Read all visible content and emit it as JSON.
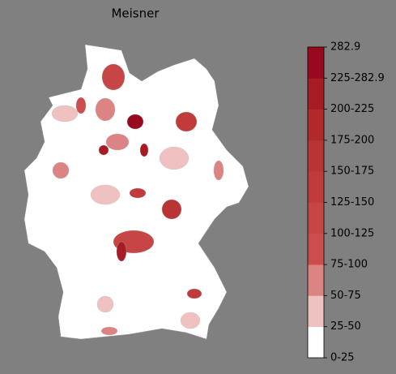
{
  "title": "Meisner",
  "colorbar": {
    "labels": [
      "0-25",
      "25-50",
      "50-75",
      "75-100",
      "100-125",
      "125-150",
      "150-175",
      "175-200",
      "200-225",
      "225-282.9",
      "282.9"
    ],
    "colors": [
      "#ffffff",
      "#efc1c1",
      "#dc8383",
      "#cc4d4d",
      "#c64545",
      "#c03c3c",
      "#b93434",
      "#b12a2a",
      "#a61b24",
      "#99091d"
    ]
  }
}
